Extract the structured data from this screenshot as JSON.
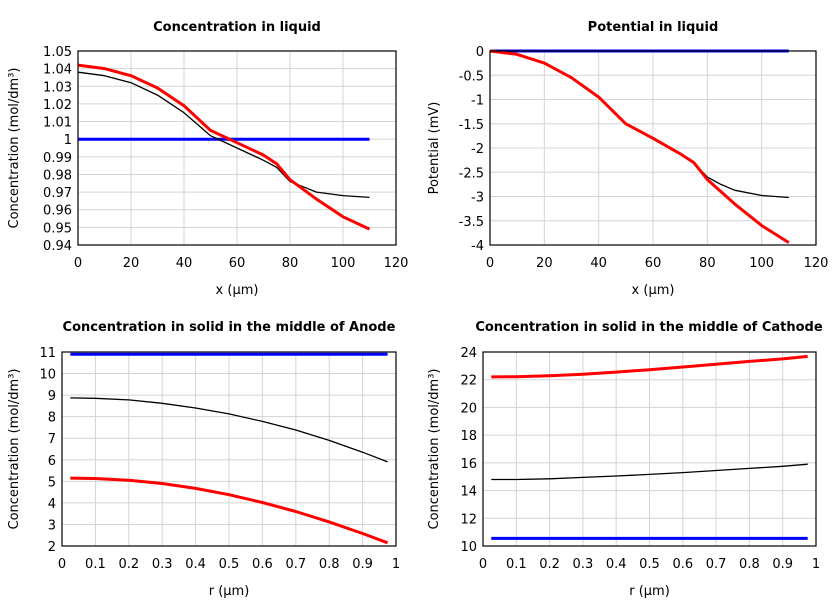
{
  "chart_data": [
    {
      "type": "line",
      "title": "Concentration in liquid",
      "xlabel": "x (µm)",
      "ylabel": "Concentration (mol/dm³)",
      "xlim": [
        0,
        120
      ],
      "ylim": [
        0.94,
        1.05
      ],
      "grid": true,
      "xticks": [
        "0",
        "20",
        "40",
        "60",
        "80",
        "100",
        "120"
      ],
      "xtick_values": [
        0,
        20,
        40,
        60,
        80,
        100,
        120
      ],
      "yticks": [
        "0.94",
        "0.95",
        "0.96",
        "0.97",
        "0.98",
        "0.99",
        "1",
        "1.01",
        "1.02",
        "1.03",
        "1.04",
        "1.05"
      ],
      "ytick_values": [
        0.94,
        0.95,
        0.96,
        0.97,
        0.98,
        0.99,
        1,
        1.01,
        1.02,
        1.03,
        1.04,
        1.05
      ],
      "series": [
        {
          "color": "#0000ff",
          "x": [
            0,
            110
          ],
          "y": [
            1,
            1
          ]
        },
        {
          "color": "#000000",
          "x": [
            0,
            10,
            20,
            30,
            40,
            50,
            60,
            70,
            75,
            80,
            85,
            90,
            100,
            110
          ],
          "y": [
            1.038,
            1.036,
            1.032,
            1.025,
            1.015,
            1.002,
            0.995,
            0.988,
            0.984,
            0.976,
            0.973,
            0.97,
            0.968,
            0.967
          ]
        },
        {
          "color": "#ff0000",
          "x": [
            0,
            10,
            20,
            30,
            40,
            50,
            60,
            70,
            75,
            80,
            90,
            100,
            110
          ],
          "y": [
            1.042,
            1.04,
            1.036,
            1.029,
            1.019,
            1.005,
            0.998,
            0.991,
            0.986,
            0.977,
            0.966,
            0.956,
            0.949
          ]
        }
      ]
    },
    {
      "type": "line",
      "title": "Potential in liquid",
      "xlabel": "x (µm)",
      "ylabel": "Potential (mV)",
      "xlim": [
        0,
        120
      ],
      "ylim": [
        -4,
        0
      ],
      "grid": true,
      "xticks": [
        "0",
        "20",
        "40",
        "60",
        "80",
        "100",
        "120"
      ],
      "xtick_values": [
        0,
        20,
        40,
        60,
        80,
        100,
        120
      ],
      "yticks": [
        "-4",
        "-3.5",
        "-3",
        "-2.5",
        "-2",
        "-1.5",
        "-1",
        "-0.5",
        "0"
      ],
      "ytick_values": [
        -4,
        -3.5,
        -3,
        -2.5,
        -2,
        -1.5,
        -1,
        -0.5,
        0
      ],
      "series": [
        {
          "color": "#0000ff",
          "x": [
            0,
            110
          ],
          "y": [
            0,
            0
          ]
        },
        {
          "color": "#000000",
          "x": [
            0,
            10,
            20,
            30,
            40,
            50,
            60,
            70,
            75,
            80,
            85,
            90,
            100,
            110
          ],
          "y": [
            0,
            -0.07,
            -0.25,
            -0.55,
            -0.95,
            -1.5,
            -1.8,
            -2.12,
            -2.3,
            -2.6,
            -2.75,
            -2.87,
            -2.98,
            -3.02
          ]
        },
        {
          "color": "#ff0000",
          "x": [
            0,
            10,
            20,
            30,
            40,
            50,
            60,
            70,
            75,
            80,
            90,
            100,
            110
          ],
          "y": [
            0,
            -0.07,
            -0.25,
            -0.55,
            -0.95,
            -1.5,
            -1.8,
            -2.12,
            -2.3,
            -2.65,
            -3.15,
            -3.6,
            -3.95
          ]
        }
      ]
    },
    {
      "type": "line",
      "title": "Concentration in solid in the middle of Anode",
      "xlabel": "r (µm)",
      "ylabel": "Concentration (mol/dm³)",
      "xlim": [
        0,
        1
      ],
      "ylim": [
        2,
        11
      ],
      "grid": true,
      "xticks": [
        "0",
        "0.1",
        "0.2",
        "0.3",
        "0.4",
        "0.5",
        "0.6",
        "0.7",
        "0.8",
        "0.9",
        "1"
      ],
      "xtick_values": [
        0,
        0.1,
        0.2,
        0.3,
        0.4,
        0.5,
        0.6,
        0.7,
        0.8,
        0.9,
        1
      ],
      "yticks": [
        "2",
        "3",
        "4",
        "5",
        "6",
        "7",
        "8",
        "9",
        "10",
        "11"
      ],
      "ytick_values": [
        2,
        3,
        4,
        5,
        6,
        7,
        8,
        9,
        10,
        11
      ],
      "series": [
        {
          "color": "#0000ff",
          "x": [
            0.025,
            0.975
          ],
          "y": [
            10.9,
            10.9
          ]
        },
        {
          "color": "#000000",
          "x": [
            0.025,
            0.1,
            0.2,
            0.3,
            0.4,
            0.5,
            0.6,
            0.7,
            0.8,
            0.9,
            0.975
          ],
          "y": [
            8.87,
            8.85,
            8.78,
            8.62,
            8.4,
            8.13,
            7.78,
            7.38,
            6.9,
            6.35,
            5.9
          ]
        },
        {
          "color": "#ff0000",
          "x": [
            0.025,
            0.1,
            0.2,
            0.3,
            0.4,
            0.5,
            0.6,
            0.7,
            0.8,
            0.9,
            0.975
          ],
          "y": [
            5.15,
            5.13,
            5.05,
            4.9,
            4.67,
            4.38,
            4.02,
            3.6,
            3.12,
            2.58,
            2.15
          ]
        }
      ]
    },
    {
      "type": "line",
      "title": "Concentration in solid in the middle of Cathode",
      "xlabel": "r (µm)",
      "ylabel": "Concentration (mol/dm³)",
      "xlim": [
        0,
        1
      ],
      "ylim": [
        10,
        24
      ],
      "grid": true,
      "xticks": [
        "0",
        "0.1",
        "0.2",
        "0.3",
        "0.4",
        "0.5",
        "0.6",
        "0.7",
        "0.8",
        "0.9",
        "1"
      ],
      "xtick_values": [
        0,
        0.1,
        0.2,
        0.3,
        0.4,
        0.5,
        0.6,
        0.7,
        0.8,
        0.9,
        1
      ],
      "yticks": [
        "10",
        "12",
        "14",
        "16",
        "18",
        "20",
        "22",
        "24"
      ],
      "ytick_values": [
        10,
        12,
        14,
        16,
        18,
        20,
        22,
        24
      ],
      "series": [
        {
          "color": "#0000ff",
          "x": [
            0.025,
            0.975
          ],
          "y": [
            10.55,
            10.55
          ]
        },
        {
          "color": "#000000",
          "x": [
            0.025,
            0.1,
            0.2,
            0.3,
            0.4,
            0.5,
            0.6,
            0.7,
            0.8,
            0.9,
            0.975
          ],
          "y": [
            14.8,
            14.8,
            14.85,
            14.95,
            15.05,
            15.17,
            15.3,
            15.45,
            15.6,
            15.75,
            15.9
          ]
        },
        {
          "color": "#ff0000",
          "x": [
            0.025,
            0.1,
            0.2,
            0.3,
            0.4,
            0.5,
            0.6,
            0.7,
            0.8,
            0.9,
            0.975
          ],
          "y": [
            22.2,
            22.22,
            22.28,
            22.4,
            22.55,
            22.72,
            22.92,
            23.12,
            23.32,
            23.5,
            23.68
          ]
        }
      ]
    }
  ]
}
